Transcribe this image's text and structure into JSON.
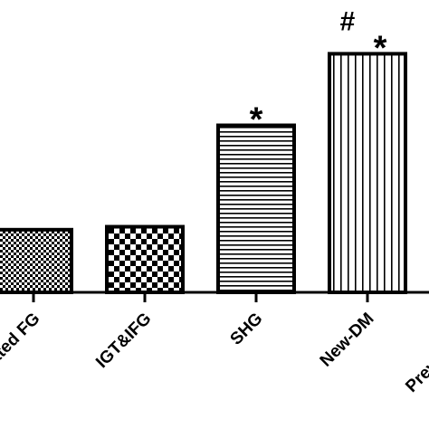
{
  "chart_data": {
    "type": "bar",
    "title": "",
    "xlabel": "",
    "ylabel": "",
    "categories": [
      "Isolated FG",
      "IGT&IFG",
      "SHG",
      "New-DM",
      "Previous DM"
    ],
    "values": [
      2.1,
      2.2,
      5.6,
      8.0,
      null
    ],
    "ylim": [
      0,
      9.5
    ],
    "patterns": [
      "fine-check",
      "checker",
      "horizontal-lines",
      "vertical-lines",
      "none"
    ],
    "annotations": [
      {
        "category": "SHG",
        "text": "*"
      },
      {
        "category": "New-DM",
        "text": "#"
      },
      {
        "category": "New-DM",
        "text": "*"
      }
    ],
    "bar_color": "#000000",
    "background": "#ffffff"
  }
}
